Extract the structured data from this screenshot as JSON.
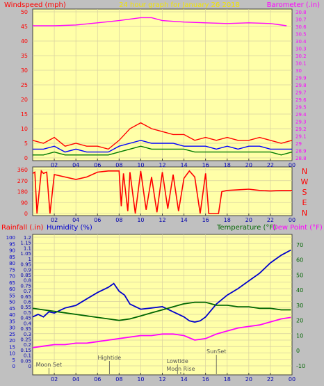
{
  "header": {
    "title": "24 hour graph for   January 26 2018",
    "left_label": "Windspeed (mph)",
    "right_label": "Barometer (.in)"
  },
  "colors": {
    "background": "#c0c0c0",
    "plot": "#ffffa8",
    "title": "#f2e400",
    "wind": "#ff0000",
    "gust": "#0000ff",
    "wind_avg": "#007a00",
    "barometer": "#ff00ff",
    "direction": "#ff0000",
    "humidity": "#0000cc",
    "temperature": "#006600",
    "dew_point": "#ff00ff",
    "rain_axis": "#0000aa",
    "annotation": "#555555"
  },
  "chart_data": [
    {
      "id": "wind_barometer",
      "type": "line",
      "xlabel": "",
      "x_ticks": [
        "02",
        "04",
        "06",
        "08",
        "10",
        "12",
        "14",
        "16",
        "18",
        "20",
        "22",
        "00"
      ],
      "ylabel_left": "Windspeed (mph)",
      "ylabel_right": "Barometer (.in)",
      "y_left_ticks": [
        0,
        5,
        10,
        15,
        20,
        25,
        30,
        35,
        40,
        45,
        50
      ],
      "ylim_left": [
        0,
        50
      ],
      "y_right_ticks": [
        "28.8",
        "28.9",
        "29",
        "29.1",
        "29.2",
        "29.3",
        "29.4",
        "29.5",
        "29.6",
        "29.7",
        "29.8",
        "29.9",
        "30",
        "30.1",
        "30.2",
        "30.3",
        "30.4",
        "30.5",
        "30.6",
        "30.7",
        "30.8"
      ],
      "ylim_right": [
        28.8,
        30.8
      ],
      "grid": true,
      "series": [
        {
          "name": "Barometer",
          "axis": "right",
          "x": [
            0,
            2,
            4,
            6,
            8,
            10,
            11,
            12,
            14,
            16,
            18,
            20,
            22,
            23.5
          ],
          "y": [
            30.61,
            30.61,
            30.62,
            30.65,
            30.68,
            30.72,
            30.72,
            30.68,
            30.66,
            30.65,
            30.64,
            30.65,
            30.64,
            30.61
          ]
        },
        {
          "name": "Wind gust",
          "axis": "left",
          "x": [
            0,
            1,
            2,
            3,
            4,
            5,
            6,
            7,
            8,
            9,
            10,
            11,
            12,
            13,
            14,
            15,
            16,
            17,
            18,
            19,
            20,
            21,
            22,
            23,
            24
          ],
          "y": [
            6,
            5,
            7,
            4,
            5,
            4,
            4,
            3,
            6,
            10,
            12,
            10,
            9,
            8,
            8,
            6,
            7,
            6,
            7,
            6,
            6,
            7,
            6,
            5,
            6
          ]
        },
        {
          "name": "Wind speed",
          "axis": "left",
          "x": [
            0,
            1,
            2,
            3,
            4,
            5,
            6,
            7,
            8,
            9,
            10,
            11,
            12,
            13,
            14,
            15,
            16,
            17,
            18,
            19,
            20,
            21,
            22,
            23,
            24
          ],
          "y": [
            3,
            3,
            4,
            2,
            3,
            2,
            2,
            2,
            4,
            5,
            6,
            5,
            5,
            5,
            4,
            4,
            4,
            3,
            4,
            3,
            4,
            4,
            3,
            3,
            3
          ]
        },
        {
          "name": "Wind average",
          "axis": "left",
          "x": [
            0,
            1,
            2,
            3,
            4,
            5,
            6,
            7,
            8,
            9,
            10,
            11,
            12,
            13,
            14,
            15,
            16,
            17,
            18,
            19,
            20,
            21,
            22,
            23,
            24
          ],
          "y": [
            1,
            1,
            2,
            1,
            1,
            1,
            1,
            1,
            2,
            3,
            4,
            3,
            3,
            3,
            3,
            2,
            2,
            2,
            2,
            2,
            2,
            2,
            2,
            1,
            2
          ]
        }
      ]
    },
    {
      "id": "wind_direction",
      "type": "line",
      "x_ticks": [
        "02",
        "04",
        "06",
        "08",
        "10",
        "12",
        "14",
        "16",
        "18",
        "20",
        "22",
        "00"
      ],
      "y_ticks": [
        0,
        90,
        180,
        270,
        360
      ],
      "ylim": [
        0,
        360
      ],
      "right_labels": [
        "N",
        "W",
        "S",
        "E",
        "N"
      ],
      "grid": true,
      "series": [
        {
          "name": "Wind direction",
          "x": [
            0,
            0.2,
            0.4,
            0.8,
            1,
            1.3,
            1.6,
            2,
            3,
            4,
            5,
            6,
            7,
            8,
            8.2,
            8.4,
            8.8,
            9,
            9.5,
            10,
            10.5,
            11,
            11.5,
            12,
            12.5,
            13,
            13.5,
            14,
            14.5,
            15,
            15.5,
            16,
            16.3,
            16.6,
            17.2,
            17.5,
            18,
            19,
            20,
            21,
            22,
            23,
            24
          ],
          "y": [
            330,
            340,
            0,
            350,
            330,
            340,
            0,
            320,
            300,
            280,
            300,
            340,
            350,
            350,
            60,
            330,
            20,
            340,
            0,
            350,
            30,
            300,
            10,
            340,
            40,
            320,
            20,
            290,
            350,
            300,
            0,
            330,
            0,
            0,
            0,
            180,
            190,
            195,
            200,
            190,
            185,
            190,
            190
          ]
        }
      ]
    },
    {
      "id": "temp_humidity_rain",
      "type": "line",
      "x_ticks": [
        "02",
        "04",
        "06",
        "08",
        "10",
        "12",
        "14",
        "16",
        "18",
        "20",
        "22",
        "00"
      ],
      "ylabel_rain": "Rainfall (.in)",
      "ylabel_humidity": "Humidity (%)",
      "ylabel_temperature": "Temperature (°F)",
      "ylabel_dew": "Dew Point (°F)",
      "y_humidity_ticks": [
        0,
        5,
        10,
        15,
        20,
        25,
        30,
        35,
        40,
        45,
        50,
        55,
        60,
        65,
        70,
        75,
        80,
        85,
        90,
        95,
        100
      ],
      "ylim_humidity": [
        0,
        100
      ],
      "y_rain_ticks": [
        "0",
        "0.05",
        "0.1",
        "0.15",
        "0.2",
        "0.25",
        "0.3",
        "0.35",
        "0.4",
        "0.45",
        "0.5",
        "0.55",
        "0.6",
        "0.65",
        "0.7",
        "0.75",
        "0.8",
        "0.85",
        "0.9",
        "0.95",
        "1",
        "1.05",
        "1.1",
        "1.15",
        "1.2"
      ],
      "ylim_rain": [
        0,
        1.2
      ],
      "y_temp_ticks": [
        -10,
        0,
        10,
        20,
        30,
        40,
        50,
        60,
        70
      ],
      "ylim_temp": [
        -10,
        75
      ],
      "grid": true,
      "annotations": [
        {
          "text": "Moon Set",
          "x": 1.5
        },
        {
          "text": "Hightide",
          "x": 7.1
        },
        {
          "text": "Lowtide",
          "x": 13.4
        },
        {
          "text": "Moon Rise",
          "x": 13.7
        },
        {
          "text": "SunSet",
          "x": 17.0
        }
      ],
      "series": [
        {
          "name": "Humidity",
          "axis": "humidity",
          "x": [
            0,
            0.5,
            1,
            1.5,
            2,
            3,
            4,
            5,
            6,
            7,
            7.5,
            8,
            8.5,
            9,
            10,
            11,
            12,
            13,
            14,
            14.5,
            15,
            15.5,
            16,
            17,
            18,
            19,
            20,
            21,
            22,
            23,
            23.9
          ],
          "y": [
            38,
            40,
            38,
            42,
            41,
            45,
            47,
            52,
            57,
            61,
            64,
            58,
            55,
            48,
            44,
            45,
            46,
            42,
            38,
            35,
            34,
            35,
            38,
            48,
            55,
            60,
            66,
            72,
            80,
            86,
            90
          ]
        },
        {
          "name": "Temperature",
          "axis": "temp",
          "x": [
            0,
            1,
            2,
            3,
            4,
            5,
            6,
            7,
            8,
            9,
            10,
            11,
            12,
            13,
            14,
            15,
            16,
            17,
            18,
            19,
            20,
            21,
            22,
            23,
            23.9
          ],
          "y": [
            28,
            27,
            26,
            25,
            24,
            23,
            22,
            21,
            20,
            21,
            23,
            25,
            27,
            29,
            31,
            32,
            32,
            30,
            30,
            29,
            29,
            28,
            28,
            27,
            27
          ]
        },
        {
          "name": "Dew Point",
          "axis": "temp",
          "x": [
            0,
            1,
            2,
            3,
            4,
            5,
            6,
            7,
            8,
            9,
            10,
            11,
            12,
            13,
            14,
            15,
            16,
            17,
            18,
            19,
            20,
            21,
            22,
            23,
            23.9
          ],
          "y": [
            2,
            3,
            4,
            4,
            5,
            5,
            6,
            7,
            8,
            9,
            10,
            10,
            11,
            11,
            10,
            7,
            8,
            11,
            13,
            15,
            16,
            17,
            19,
            21,
            22
          ]
        }
      ]
    }
  ]
}
